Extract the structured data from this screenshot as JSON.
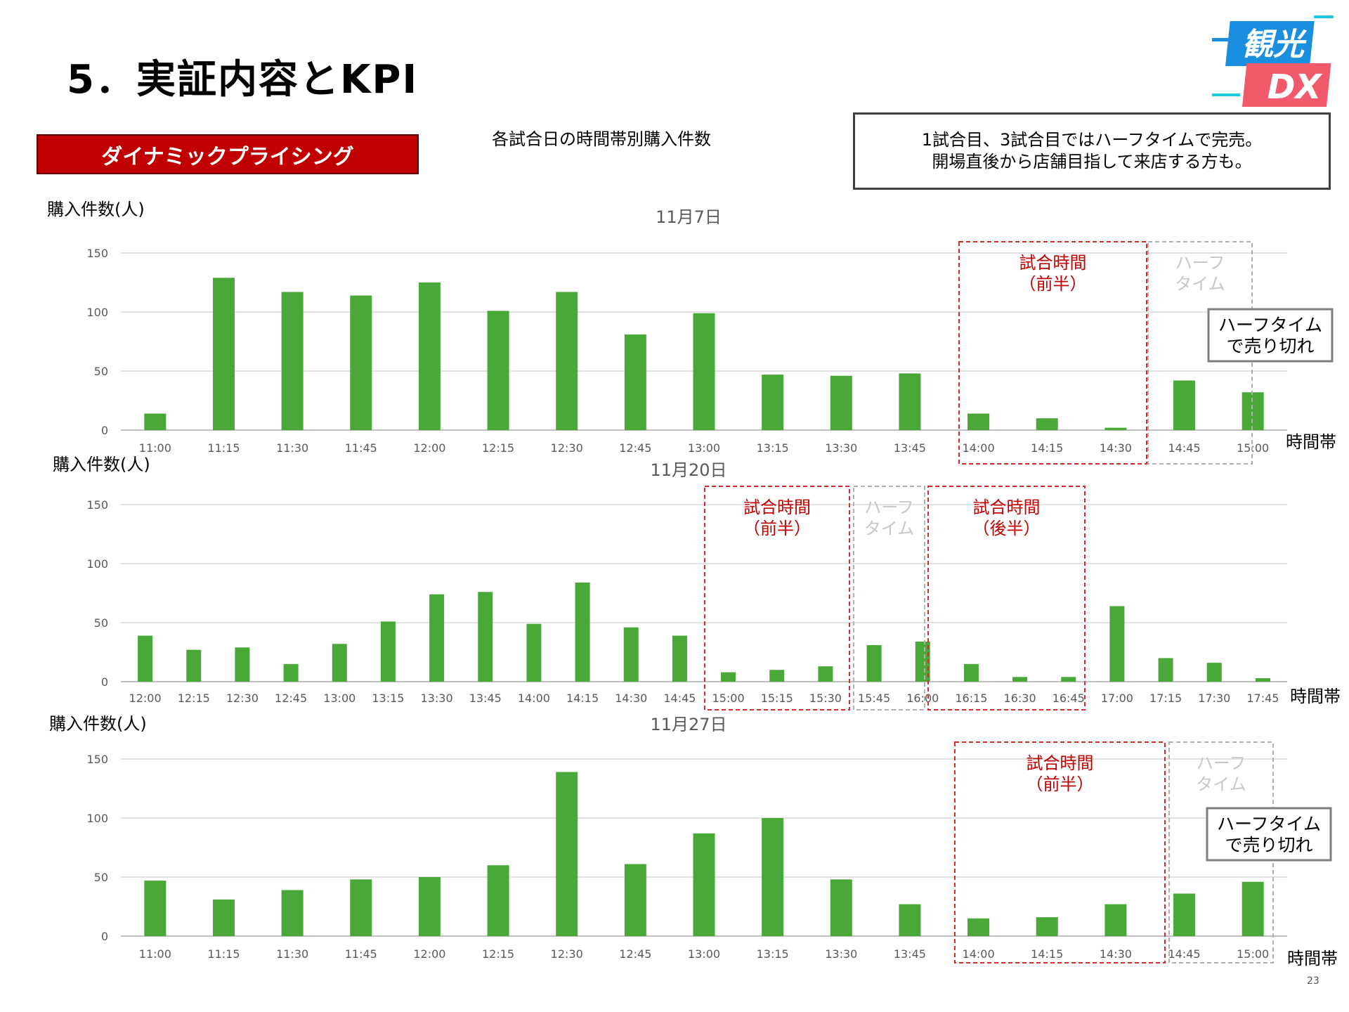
{
  "header": {
    "title": "5．実証内容とKPI",
    "badge": "ダイナミックプライシング",
    "subtitle": "各試合日の時間帯別購入件数",
    "note_lines": [
      "1試合目、3試合目ではハーフタイムで完売。",
      "開場直後から店舗目指して来店する方も。"
    ],
    "page_number": "23"
  },
  "logo": {
    "line1": "観光",
    "line2": "DX"
  },
  "colors": {
    "bar": "#4aa838",
    "accent_red": "#c00000",
    "dashed_red": "#d62b2b",
    "dashed_gray": "#b0b0b0",
    "grid": "#d9d9d9"
  },
  "chart_data": [
    {
      "type": "bar",
      "title": "11月7日",
      "ylabel": "購入件数(人)",
      "xlabel": "時間帯",
      "ylim": [
        0,
        150
      ],
      "yticks": [
        0,
        50,
        100,
        150
      ],
      "categories": [
        "11:00",
        "11:15",
        "11:30",
        "11:45",
        "12:00",
        "12:15",
        "12:30",
        "12:45",
        "13:00",
        "13:15",
        "13:30",
        "13:45",
        "14:00",
        "14:15",
        "14:30",
        "14:45",
        "15:00"
      ],
      "values": [
        14,
        129,
        117,
        114,
        125,
        101,
        117,
        81,
        99,
        47,
        46,
        48,
        14,
        10,
        2,
        42,
        32
      ],
      "annotations": [
        {
          "label": "試合時間\n（前半）",
          "style": "red",
          "from": "14:00",
          "to": "14:30"
        },
        {
          "label": "ハーフ\nタイム",
          "style": "gray",
          "from": "14:45",
          "to": "15:00"
        }
      ],
      "callout": "ハーフタイム\nで売り切れ"
    },
    {
      "type": "bar",
      "title": "11月20日",
      "ylabel": "購入件数(人)",
      "xlabel": "時間帯",
      "ylim": [
        0,
        150
      ],
      "yticks": [
        0,
        50,
        100,
        150
      ],
      "categories": [
        "12:00",
        "12:15",
        "12:30",
        "12:45",
        "13:00",
        "13:15",
        "13:30",
        "13:45",
        "14:00",
        "14:15",
        "14:30",
        "14:45",
        "15:00",
        "15:15",
        "15:30",
        "15:45",
        "16:00",
        "16:15",
        "16:30",
        "16:45",
        "17:00",
        "17:15",
        "17:30",
        "17:45"
      ],
      "values": [
        39,
        27,
        29,
        15,
        32,
        51,
        74,
        76,
        49,
        84,
        46,
        39,
        8,
        10,
        13,
        31,
        34,
        15,
        4,
        4,
        64,
        20,
        16,
        3
      ],
      "annotations": [
        {
          "label": "試合時間\n（前半）",
          "style": "red",
          "from": "15:00",
          "to": "15:30"
        },
        {
          "label": "ハーフ\nタイム",
          "style": "gray",
          "from": "15:45",
          "to": "16:00"
        },
        {
          "label": "試合時間\n（後半）",
          "style": "red",
          "from": "16:15",
          "to": "16:45"
        }
      ]
    },
    {
      "type": "bar",
      "title": "11月27日",
      "ylabel": "購入件数(人)",
      "xlabel": "時間帯",
      "ylim": [
        0,
        150
      ],
      "yticks": [
        0,
        50,
        100,
        150
      ],
      "categories": [
        "11:00",
        "11:15",
        "11:30",
        "11:45",
        "12:00",
        "12:15",
        "12:30",
        "12:45",
        "13:00",
        "13:15",
        "13:30",
        "13:45",
        "14:00",
        "14:15",
        "14:30",
        "14:45",
        "15:00"
      ],
      "values": [
        47,
        31,
        39,
        48,
        50,
        60,
        139,
        61,
        87,
        100,
        48,
        27,
        15,
        16,
        27,
        36,
        46
      ],
      "annotations": [
        {
          "label": "試合時間\n（前半）",
          "style": "red",
          "from": "14:00",
          "to": "14:30"
        },
        {
          "label": "ハーフ\nタイム",
          "style": "gray",
          "from": "14:45",
          "to": "15:00"
        }
      ],
      "callout": "ハーフタイム\nで売り切れ"
    }
  ]
}
